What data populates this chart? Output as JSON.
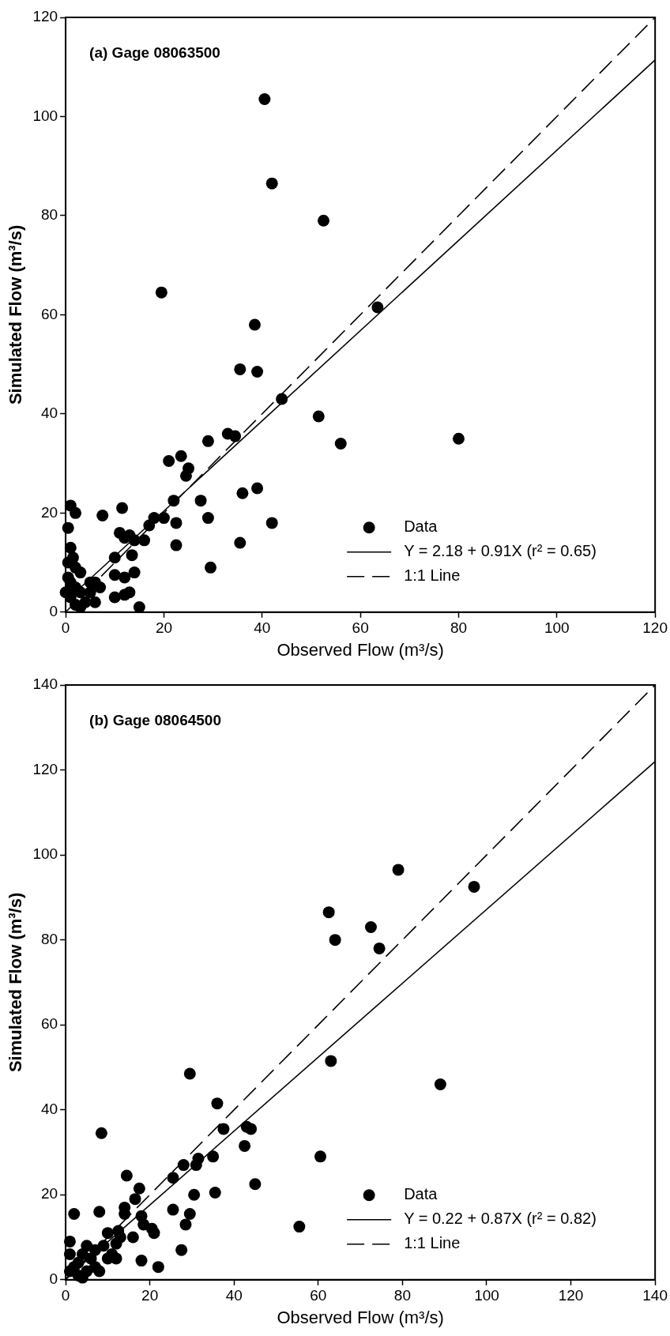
{
  "chart_data": [
    {
      "type": "scatter",
      "title": "(a) Gage 08063500",
      "xlabel": "Observed Flow (m³/s)",
      "ylabel": "Simulated Flow (m³/s)",
      "xlim": [
        0,
        120
      ],
      "ylim": [
        0,
        120
      ],
      "xticks": [
        0,
        20,
        40,
        60,
        80,
        100,
        120
      ],
      "yticks": [
        0,
        20,
        40,
        60,
        80,
        100,
        120
      ],
      "grid": false,
      "legend": "bottom right",
      "series": [
        {
          "name": "Data",
          "type": "scatter",
          "marker": "circle",
          "color": "#000000",
          "x": [
            40.5,
            42,
            52.5,
            19.5,
            38.5,
            35.5,
            39,
            63.5,
            44,
            51.5,
            56,
            80,
            33,
            34.5,
            29,
            21,
            23.5,
            25,
            24.5,
            22,
            27.5,
            36,
            39,
            29,
            35.5,
            42,
            22.5,
            29.5,
            17,
            18,
            20,
            22.5,
            14,
            16,
            11.5,
            7.5,
            13,
            11,
            12,
            13.5,
            14,
            12,
            10,
            10,
            10,
            12,
            13,
            15,
            6,
            7,
            1,
            2,
            0.5,
            1,
            0.5,
            1.5,
            2,
            3,
            0.5,
            1,
            2,
            3,
            5,
            1,
            2,
            3,
            4,
            6,
            5,
            0
          ],
          "values": [
            103.5,
            86.5,
            79,
            64.5,
            58,
            49,
            48.5,
            61.5,
            43,
            39.5,
            34,
            35,
            36,
            35.5,
            34.5,
            30.5,
            31.5,
            29,
            27.5,
            22.5,
            22.5,
            24,
            25,
            19,
            14,
            18,
            13.5,
            9,
            17.5,
            19,
            19,
            18,
            14.5,
            14.5,
            21,
            19.5,
            15.5,
            16,
            15,
            11.5,
            8,
            7,
            11,
            7.5,
            3,
            3.5,
            4,
            1,
            6,
            5,
            21.5,
            20,
            17,
            13,
            10,
            11,
            9,
            8,
            7,
            6,
            5,
            4,
            4,
            3,
            1.5,
            1,
            2,
            2,
            6,
            4
          ]
        },
        {
          "name": "Y = 2.18 + 0.91X (r² = 0.65)",
          "type": "line",
          "marker": "none",
          "line_style": "solid",
          "color": "#000000",
          "x": [
            0,
            120
          ],
          "values": [
            2.2,
            111.4
          ]
        },
        {
          "name": "1:1 Line",
          "type": "line",
          "marker": "none",
          "line_style": "dashed",
          "color": "#000000",
          "x": [
            0,
            120
          ],
          "values": [
            0,
            120
          ]
        }
      ]
    },
    {
      "type": "scatter",
      "title": "(b) Gage 08064500",
      "xlabel": "Observed Flow (m³/s)",
      "ylabel": "Simulated Flow (m³/s)",
      "xlim": [
        0,
        140
      ],
      "ylim": [
        0,
        140
      ],
      "xticks": [
        0,
        20,
        40,
        60,
        80,
        100,
        120,
        140
      ],
      "yticks": [
        0,
        20,
        40,
        60,
        80,
        100,
        120,
        140
      ],
      "grid": false,
      "legend": "bottom right",
      "series": [
        {
          "name": "Data",
          "type": "scatter",
          "marker": "circle",
          "color": "#000000",
          "x": [
            79,
            97,
            62.5,
            64,
            72.5,
            74.5,
            63,
            89,
            29.5,
            8.5,
            36,
            43,
            37.5,
            44,
            42.5,
            35,
            31.5,
            31,
            28,
            25.5,
            14.5,
            17.5,
            16.5,
            60.5,
            45,
            35.5,
            30.5,
            25.5,
            29.5,
            28.5,
            55.5,
            27.5,
            18,
            14,
            14,
            8,
            2,
            18,
            22,
            20.5,
            21,
            18.5,
            13,
            12,
            10,
            9,
            7,
            5,
            6,
            4,
            3,
            1,
            1,
            2,
            1,
            3,
            5,
            7,
            10,
            12,
            8,
            4,
            11,
            16,
            12.5
          ],
          "values": [
            96.5,
            92.5,
            86.5,
            80,
            83,
            78,
            51.5,
            46,
            48.5,
            34.5,
            41.5,
            36,
            35.5,
            35.5,
            31.5,
            29,
            28.5,
            27,
            27,
            24,
            24.5,
            21.5,
            19,
            29,
            22.5,
            20.5,
            20,
            16.5,
            15.5,
            13,
            12.5,
            7,
            15,
            15.5,
            17,
            16,
            15.5,
            4.5,
            3,
            12,
            11,
            13,
            10,
            8.5,
            11,
            8,
            7,
            8,
            5,
            6,
            4,
            9,
            6,
            3,
            2,
            1,
            2,
            3,
            5,
            5,
            2,
            0.5,
            6,
            10,
            11.5
          ]
        },
        {
          "name": "Y = 0.22 + 0.87X (r² = 0.82)",
          "type": "line",
          "marker": "none",
          "line_style": "solid",
          "color": "#000000",
          "x": [
            0,
            140
          ],
          "values": [
            0.2,
            122
          ]
        },
        {
          "name": "1:1 Line",
          "type": "line",
          "marker": "none",
          "line_style": "dashed",
          "color": "#000000",
          "x": [
            0,
            140
          ],
          "values": [
            0,
            140
          ]
        }
      ]
    }
  ]
}
